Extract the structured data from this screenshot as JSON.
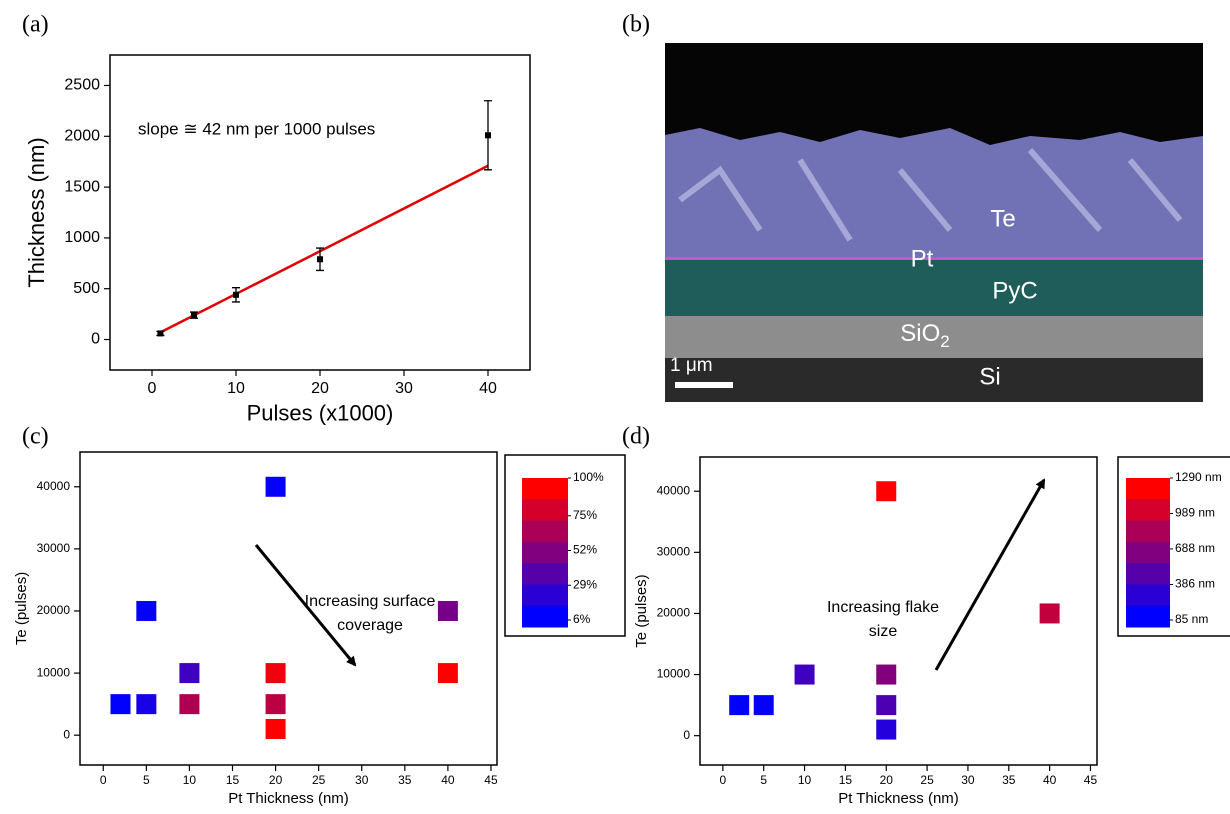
{
  "chart_data": [
    {
      "type": "scatter",
      "panel_label": "(a)",
      "x_label": "Pulses (x1000)",
      "y_label": "Thickness (nm)",
      "annotation": "slope ≅ 42 nm per 1000 pulses",
      "x": [
        1,
        5,
        10,
        20,
        40
      ],
      "series": [
        {
          "color": "#000000",
          "values": [
            60,
            240,
            440,
            790,
            2010
          ],
          "errors": [
            20,
            30,
            70,
            110,
            340
          ]
        }
      ],
      "fit": {
        "color": "#e00000",
        "x": [
          1,
          40
        ],
        "values": [
          70,
          1710
        ]
      },
      "xlim": [
        -5,
        45
      ],
      "xticks": [
        0,
        10,
        20,
        30,
        40
      ],
      "ylim": [
        -300,
        2800
      ],
      "yticks": [
        0,
        500,
        1000,
        1500,
        2000,
        2500
      ]
    },
    {
      "type": "image",
      "panel_label": "(b)",
      "labels": [
        "Te",
        "Pt",
        "PyC",
        {
          "text": "SiO",
          "subscript": "2"
        },
        "Si"
      ],
      "scale_bar": "1 μm"
    },
    {
      "type": "scatter",
      "panel_label": "(c)",
      "x_label": "Pt Thickness (nm)",
      "y_label": "Te (pulses)",
      "annotation_lines": [
        "Increasing surface",
        "coverage"
      ],
      "x": [
        2,
        5,
        5,
        10,
        10,
        20,
        20,
        20,
        20,
        40,
        40
      ],
      "series": [
        {
          "values": [
            5000,
            5000,
            20000,
            10000,
            5000,
            40000,
            10000,
            5000,
            1000,
            20000,
            10000
          ],
          "color_values": [
            6,
            15,
            8,
            29,
            70,
            8,
            95,
            75,
            100,
            50,
            100
          ]
        }
      ],
      "colormap": [
        "#0000ff",
        "#ff0000"
      ],
      "clim": [
        6,
        100
      ],
      "colorbar_ticks": [
        {
          "value": 100,
          "label": "100%"
        },
        {
          "value": 75,
          "label": "75%"
        },
        {
          "value": 52,
          "label": "52%"
        },
        {
          "value": 29,
          "label": "29%"
        },
        {
          "value": 6,
          "label": "6%"
        }
      ],
      "xlim": [
        -2.7,
        45.7
      ],
      "xticks": [
        0,
        5,
        10,
        15,
        20,
        25,
        30,
        35,
        40,
        45
      ],
      "ylim": [
        -4800,
        45600
      ],
      "yticks": [
        0,
        10000,
        20000,
        30000,
        40000
      ]
    },
    {
      "type": "scatter",
      "panel_label": "(d)",
      "x_label": "Pt Thickness (nm)",
      "y_label": "Te (pulses)",
      "annotation_lines": [
        "Increasing flake",
        "size"
      ],
      "x": [
        2,
        5,
        10,
        20,
        20,
        20,
        20,
        40
      ],
      "series": [
        {
          "values": [
            5000,
            5000,
            10000,
            40000,
            10000,
            5000,
            1000,
            20000
          ],
          "color_values": [
            85,
            120,
            386,
            1290,
            700,
            450,
            250,
            1000
          ]
        }
      ],
      "colormap": [
        "#0000ff",
        "#ff0000"
      ],
      "clim": [
        85,
        1290
      ],
      "colorbar_ticks": [
        {
          "value": 1290,
          "label": "1290 nm"
        },
        {
          "value": 989,
          "label": "989 nm"
        },
        {
          "value": 688,
          "label": "688 nm"
        },
        {
          "value": 386,
          "label": "386 nm"
        },
        {
          "value": 85,
          "label": "85 nm"
        }
      ],
      "xlim": [
        -2.8,
        45.8
      ],
      "xticks": [
        0,
        5,
        10,
        15,
        20,
        25,
        30,
        35,
        40,
        45
      ],
      "ylim": [
        -4800,
        45600
      ],
      "yticks": [
        0,
        10000,
        20000,
        30000,
        40000
      ]
    }
  ]
}
